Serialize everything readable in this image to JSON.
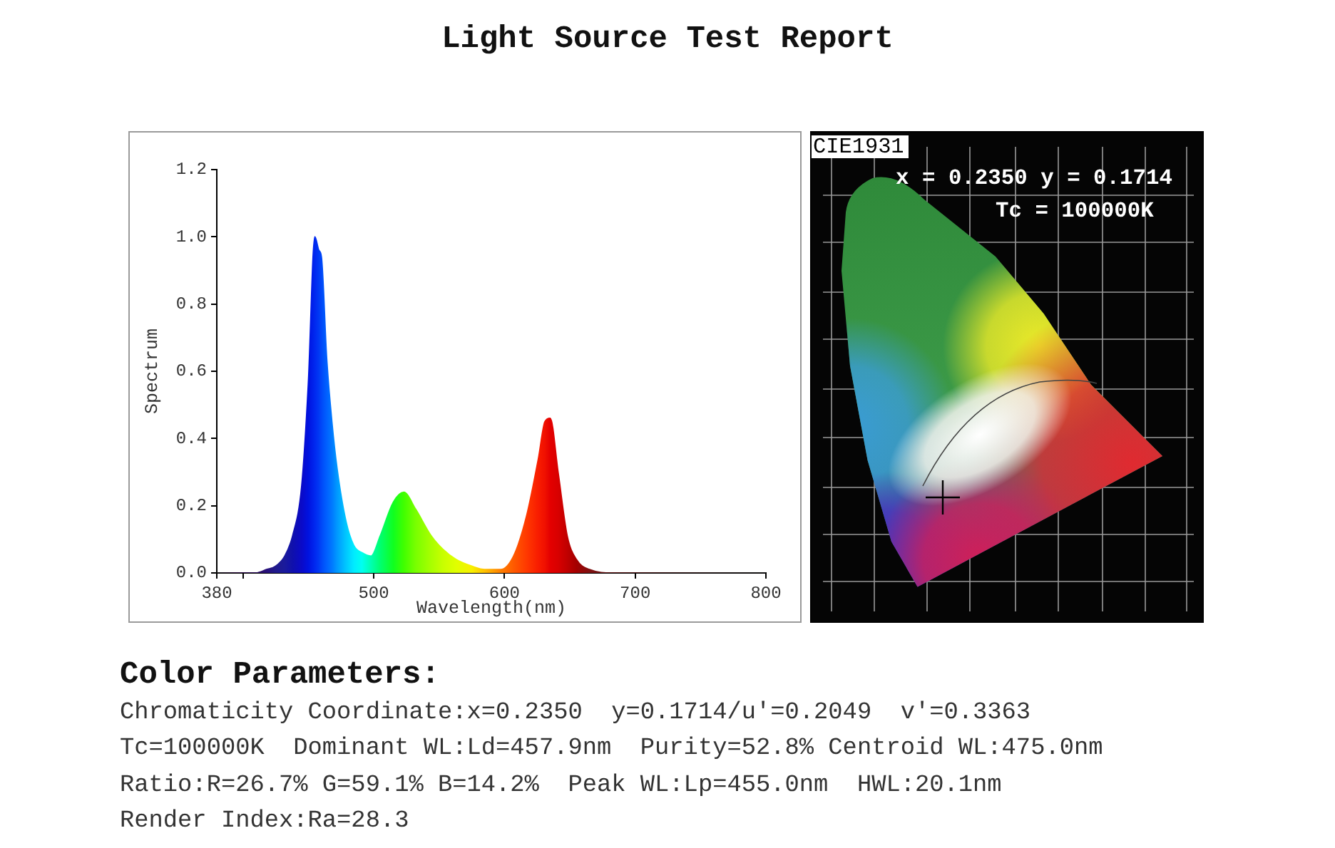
{
  "chart_data": [
    {
      "type": "other",
      "title": "Light Source Test Report"
    },
    {
      "type": "area",
      "xlabel": "Wavelength(nm)",
      "ylabel": "Spectrum",
      "x": [
        380,
        395,
        410,
        418,
        425,
        432,
        438,
        445,
        450,
        455,
        458,
        460,
        464,
        468,
        472,
        479,
        485,
        491,
        498,
        505,
        515,
        523,
        532,
        544,
        553,
        563,
        575,
        585,
        597,
        607,
        617,
        626,
        631,
        635,
        641,
        648,
        655,
        665,
        683,
        720,
        760,
        800
      ],
      "values": [
        0,
        0,
        0,
        0.01,
        0.02,
        0.05,
        0.11,
        0.26,
        0.56,
        1.0,
        0.96,
        0.94,
        0.64,
        0.45,
        0.31,
        0.15,
        0.08,
        0.06,
        0.05,
        0.11,
        0.21,
        0.24,
        0.19,
        0.11,
        0.07,
        0.04,
        0.02,
        0.01,
        0.01,
        0.05,
        0.17,
        0.34,
        0.45,
        0.46,
        0.3,
        0.11,
        0.04,
        0.01,
        0,
        0,
        0,
        0
      ],
      "colors": [
        "#202020",
        "#301040",
        "#301060",
        "#28107a",
        "#201a8c",
        "#1a1a9c",
        "#1010ac",
        "#0a0ac8",
        "#0012e0",
        "#0028f0",
        "#0038f4",
        "#0048f8",
        "#0060ff",
        "#0078ff",
        "#0098ff",
        "#00c8ff",
        "#00ecff",
        "#00fff0",
        "#00ffb0",
        "#00ff70",
        "#10ff20",
        "#40ff00",
        "#78ff00",
        "#a8ff00",
        "#c8ff00",
        "#e0ff00",
        "#f8f000",
        "#ffc000",
        "#ff8000",
        "#ff5a00",
        "#ff3800",
        "#f81c00",
        "#f01000",
        "#e40000",
        "#d80000",
        "#c00000",
        "#a40000",
        "#801010",
        "#601818",
        "#401818",
        "#302020",
        "#202020"
      ],
      "xlim": [
        380,
        800
      ],
      "xticks": [
        380,
        {
          "value": 400,
          "label": null
        },
        500,
        600,
        700,
        800
      ],
      "ylim": [
        0,
        1.2
      ],
      "yticks": [
        {
          "value": 0,
          "label": "0.0"
        },
        0.2,
        0.4,
        0.6,
        0.8,
        {
          "value": 1,
          "label": "1.0"
        },
        1.2
      ]
    },
    {
      "type": "other",
      "title": "CIE1931",
      "annotations": [
        "x = 0.2350 y = 0.1714",
        "Tc = 100000K"
      ]
    },
    {
      "type": "other",
      "title": "Color Parameters:",
      "annotations": [
        "Chromaticity Coordinate:x=0.2350  y=0.1714/u'=0.2049  v'=0.3363",
        "Tc=100000K  Dominant WL:Ld=457.9nm  Purity=52.8% Centroid WL:475.0nm",
        "Ratio:R=26.7% G=59.1% B=14.2%  Peak WL:Lp=455.0nm  HWL:20.1nm",
        "Render Index:Ra=28.3"
      ]
    }
  ]
}
